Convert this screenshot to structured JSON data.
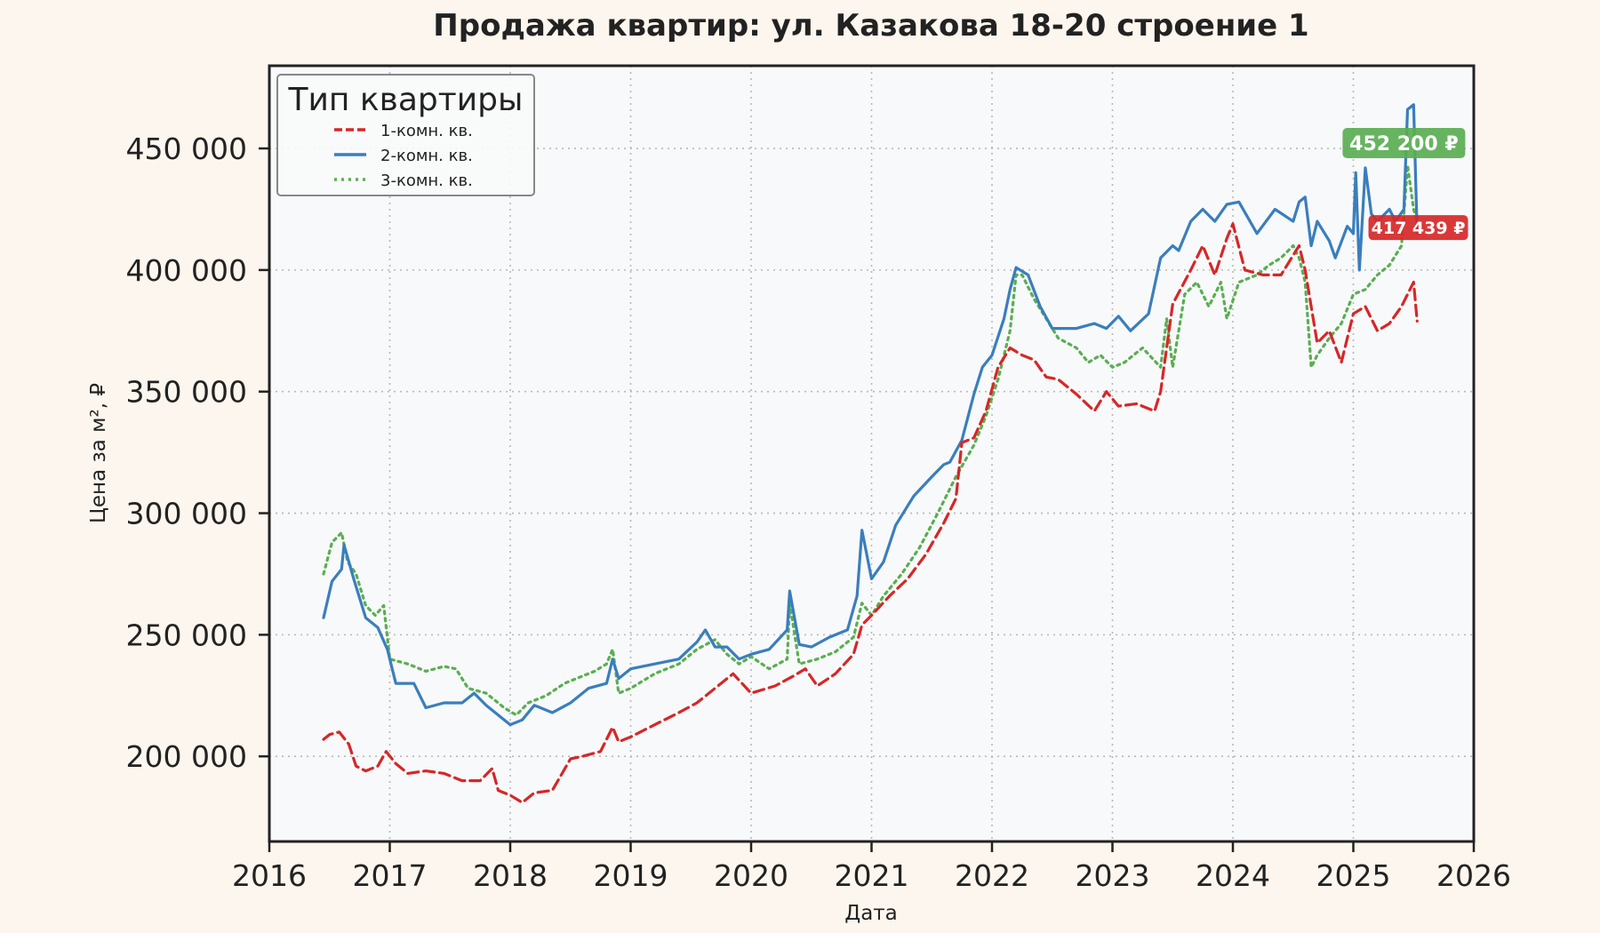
{
  "chart_data": {
    "type": "line",
    "title": "Продажа квартир: ул. Казакова 18-20 строение 1",
    "xlabel": "Дата",
    "ylabel": "Цена за м², ₽",
    "xlim": [
      2016,
      2026
    ],
    "ylim": [
      165000,
      484000
    ],
    "xticks": [
      2016,
      2017,
      2018,
      2019,
      2020,
      2021,
      2022,
      2023,
      2024,
      2025,
      2026
    ],
    "xtick_labels": [
      "2016",
      "2017",
      "2018",
      "2019",
      "2020",
      "2021",
      "2022",
      "2023",
      "2024",
      "2025",
      "2026"
    ],
    "yticks": [
      200000,
      250000,
      300000,
      350000,
      400000,
      450000
    ],
    "ytick_labels": [
      "200 000",
      "250 000",
      "300 000",
      "350 000",
      "400 000",
      "450 000"
    ],
    "grid": true,
    "legend": {
      "title": "Тип квартиры",
      "placement": "top-left"
    },
    "series": [
      {
        "name": "1-комн. кв.",
        "color": "#d62728",
        "dash": "dashed",
        "x": [
          2016.45,
          2016.5,
          2016.58,
          2016.66,
          2016.72,
          2016.8,
          2016.9,
          2016.97,
          2017.05,
          2017.15,
          2017.3,
          2017.45,
          2017.6,
          2017.75,
          2017.85,
          2017.9,
          2018.0,
          2018.1,
          2018.2,
          2018.35,
          2018.5,
          2018.6,
          2018.75,
          2018.85,
          2018.9,
          2019.0,
          2019.2,
          2019.4,
          2019.55,
          2019.7,
          2019.85,
          2020.0,
          2020.2,
          2020.35,
          2020.45,
          2020.55,
          2020.7,
          2020.85,
          2020.92,
          2021.0,
          2021.15,
          2021.3,
          2021.45,
          2021.6,
          2021.7,
          2021.75,
          2021.85,
          2021.95,
          2022.05,
          2022.15,
          2022.25,
          2022.35,
          2022.45,
          2022.55,
          2022.7,
          2022.85,
          2022.95,
          2023.05,
          2023.2,
          2023.35,
          2023.4,
          2023.5,
          2023.65,
          2023.75,
          2023.85,
          2023.95,
          2024.0,
          2024.1,
          2024.25,
          2024.4,
          2024.55,
          2024.6,
          2024.7,
          2024.8,
          2024.9,
          2025.0,
          2025.1,
          2025.2,
          2025.3,
          2025.4,
          2025.5,
          2025.53
        ],
        "y": [
          207000,
          209000,
          210000,
          205000,
          196000,
          194000,
          196000,
          202000,
          197000,
          193000,
          194000,
          193000,
          190000,
          190000,
          195000,
          186000,
          184000,
          181000,
          185000,
          186000,
          199000,
          200000,
          202000,
          212000,
          206000,
          208000,
          213000,
          218000,
          222000,
          228000,
          234000,
          226000,
          229000,
          233000,
          236000,
          229000,
          234000,
          242000,
          254000,
          258000,
          266000,
          273000,
          283000,
          296000,
          306000,
          329000,
          331000,
          342000,
          360000,
          368000,
          365000,
          363000,
          356000,
          355000,
          349000,
          342000,
          350000,
          344000,
          345000,
          342000,
          350000,
          386000,
          400000,
          410000,
          398000,
          413000,
          419000,
          400000,
          398000,
          398000,
          410000,
          400000,
          370000,
          375000,
          362000,
          382000,
          385000,
          375000,
          378000,
          385000,
          395000,
          379000
        ]
      },
      {
        "name": "2-комн. кв.",
        "color": "#3a7ebd",
        "dash": "solid",
        "x": [
          2016.45,
          2016.52,
          2016.6,
          2016.62,
          2016.7,
          2016.8,
          2016.9,
          2016.98,
          2017.05,
          2017.2,
          2017.3,
          2017.45,
          2017.6,
          2017.7,
          2017.8,
          2017.9,
          2018.0,
          2018.1,
          2018.2,
          2018.35,
          2018.5,
          2018.65,
          2018.8,
          2018.85,
          2018.9,
          2019.0,
          2019.2,
          2019.4,
          2019.55,
          2019.62,
          2019.7,
          2019.8,
          2019.9,
          2020.0,
          2020.15,
          2020.3,
          2020.32,
          2020.4,
          2020.5,
          2020.65,
          2020.8,
          2020.88,
          2020.92,
          2021.0,
          2021.1,
          2021.2,
          2021.35,
          2021.5,
          2021.6,
          2021.65,
          2021.75,
          2021.85,
          2021.92,
          2022.0,
          2022.1,
          2022.15,
          2022.2,
          2022.3,
          2022.4,
          2022.5,
          2022.7,
          2022.85,
          2022.95,
          2023.05,
          2023.15,
          2023.3,
          2023.4,
          2023.5,
          2023.55,
          2023.65,
          2023.75,
          2023.85,
          2023.95,
          2024.05,
          2024.2,
          2024.35,
          2024.5,
          2024.55,
          2024.6,
          2024.65,
          2024.7,
          2024.8,
          2024.85,
          2024.95,
          2025.0,
          2025.02,
          2025.05,
          2025.1,
          2025.15,
          2025.2,
          2025.3,
          2025.35,
          2025.42,
          2025.45,
          2025.5,
          2025.53
        ],
        "y": [
          257000,
          272000,
          277000,
          287000,
          273000,
          257000,
          253000,
          244000,
          230000,
          230000,
          220000,
          222000,
          222000,
          226000,
          221000,
          217000,
          213000,
          215000,
          221000,
          218000,
          222000,
          228000,
          230000,
          240000,
          232000,
          236000,
          238000,
          240000,
          247000,
          252000,
          245000,
          245000,
          240000,
          242000,
          244000,
          252000,
          268000,
          246000,
          245000,
          249000,
          252000,
          266000,
          293000,
          273000,
          280000,
          295000,
          307000,
          315000,
          320000,
          321000,
          330000,
          349000,
          360000,
          365000,
          380000,
          392000,
          401000,
          398000,
          385000,
          376000,
          376000,
          378000,
          376000,
          381000,
          375000,
          382000,
          405000,
          410000,
          408000,
          420000,
          425000,
          420000,
          427000,
          428000,
          415000,
          425000,
          420000,
          428000,
          430000,
          410000,
          420000,
          412000,
          405000,
          418000,
          415000,
          440000,
          400000,
          442000,
          423000,
          420000,
          425000,
          420000,
          425000,
          466000,
          468000,
          415000
        ]
      },
      {
        "name": "3-комн. кв.",
        "color": "#5aae52",
        "dash": "dotted",
        "x": [
          2016.45,
          2016.52,
          2016.6,
          2016.65,
          2016.72,
          2016.8,
          2016.88,
          2016.95,
          2017.0,
          2017.15,
          2017.3,
          2017.45,
          2017.55,
          2017.65,
          2017.8,
          2017.95,
          2018.05,
          2018.15,
          2018.3,
          2018.45,
          2018.55,
          2018.7,
          2018.8,
          2018.85,
          2018.9,
          2019.0,
          2019.2,
          2019.4,
          2019.55,
          2019.7,
          2019.8,
          2019.9,
          2020.0,
          2020.15,
          2020.3,
          2020.32,
          2020.4,
          2020.55,
          2020.7,
          2020.85,
          2020.92,
          2021.0,
          2021.1,
          2021.25,
          2021.4,
          2021.55,
          2021.7,
          2021.85,
          2021.95,
          2022.05,
          2022.15,
          2022.2,
          2022.25,
          2022.35,
          2022.45,
          2022.55,
          2022.7,
          2022.8,
          2022.9,
          2023.0,
          2023.1,
          2023.25,
          2023.4,
          2023.45,
          2023.5,
          2023.6,
          2023.7,
          2023.8,
          2023.9,
          2023.95,
          2024.05,
          2024.2,
          2024.3,
          2024.4,
          2024.5,
          2024.55,
          2024.6,
          2024.65,
          2024.7,
          2024.8,
          2024.9,
          2025.0,
          2025.1,
          2025.2,
          2025.3,
          2025.4,
          2025.45,
          2025.5,
          2025.53
        ],
        "y": [
          275000,
          288000,
          292000,
          280000,
          275000,
          262000,
          258000,
          262000,
          240000,
          238000,
          235000,
          237000,
          236000,
          228000,
          226000,
          220000,
          217000,
          222000,
          225000,
          230000,
          232000,
          235000,
          238000,
          244000,
          226000,
          228000,
          234000,
          238000,
          244000,
          248000,
          242000,
          238000,
          241000,
          236000,
          240000,
          263000,
          238000,
          240000,
          243000,
          249000,
          263000,
          258000,
          266000,
          275000,
          286000,
          300000,
          315000,
          328000,
          340000,
          355000,
          375000,
          398000,
          398000,
          388000,
          380000,
          372000,
          368000,
          362000,
          365000,
          360000,
          362000,
          368000,
          360000,
          380000,
          360000,
          390000,
          395000,
          385000,
          395000,
          380000,
          395000,
          398000,
          402000,
          405000,
          410000,
          405000,
          395000,
          360000,
          365000,
          372000,
          378000,
          390000,
          392000,
          398000,
          402000,
          410000,
          443000,
          425000,
          420000
        ]
      }
    ],
    "annotations": [
      {
        "text": "452 200 ₽",
        "x": 2025.42,
        "y": 452200,
        "color": "#5aae52"
      },
      {
        "text": "417 439 ₽",
        "x": 2025.48,
        "y": 417439,
        "color": "#d62728"
      }
    ]
  }
}
